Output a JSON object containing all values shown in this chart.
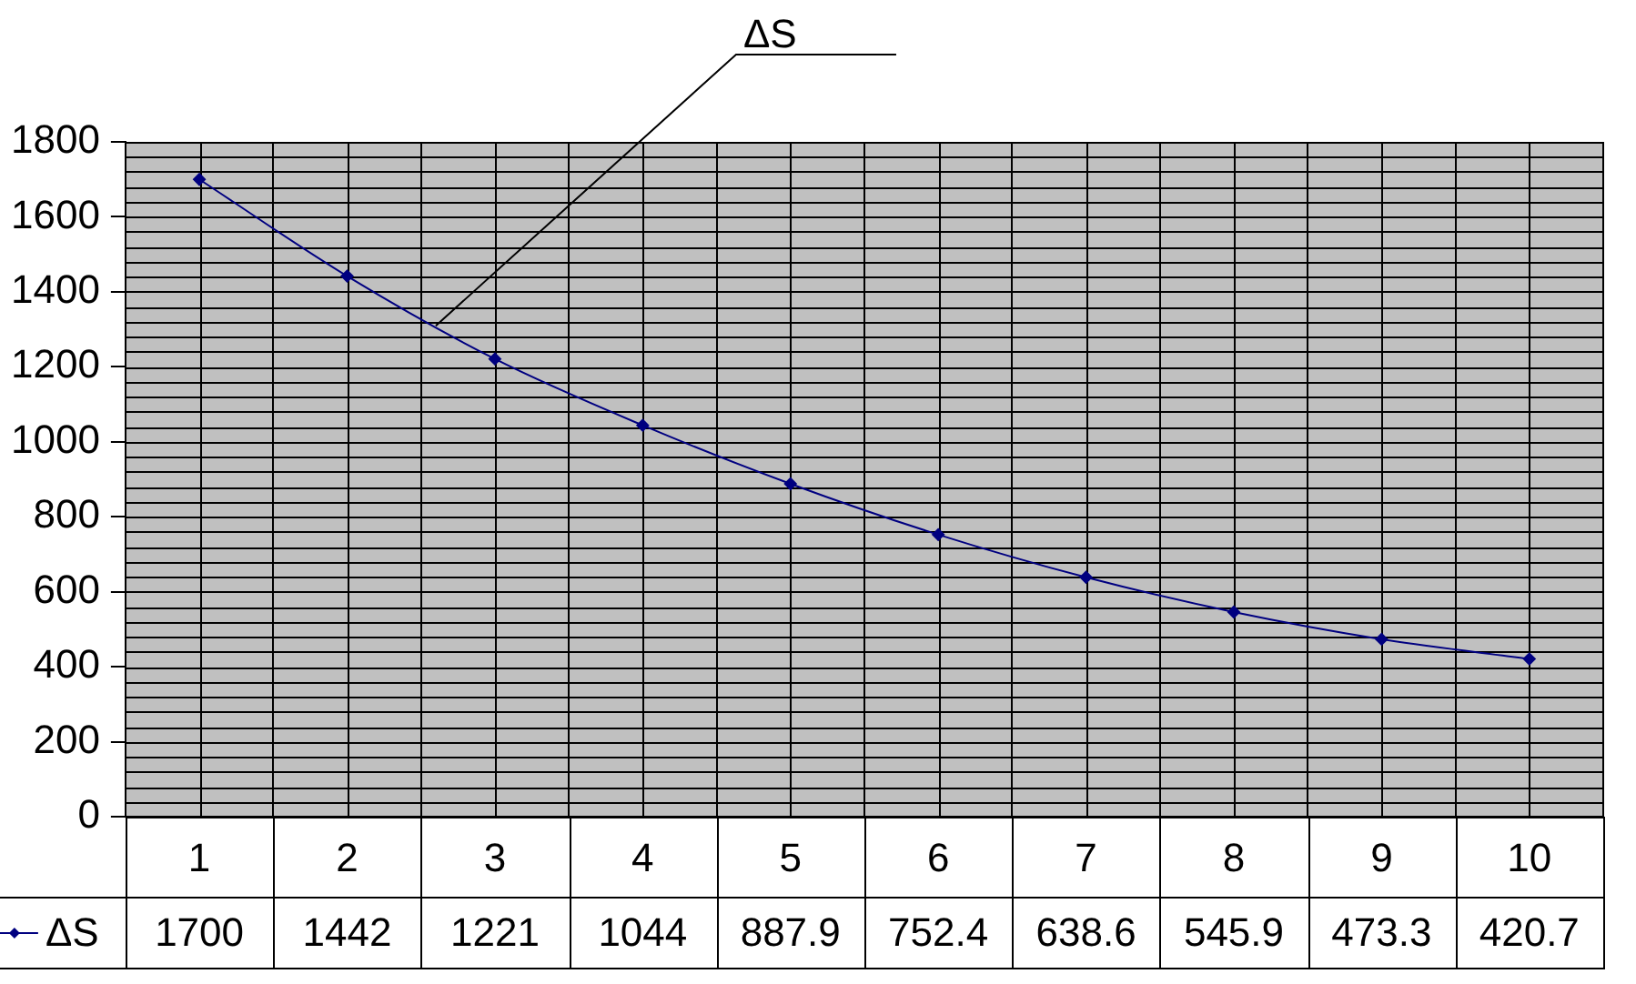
{
  "chart_data": {
    "type": "line",
    "categories": [
      "1",
      "2",
      "3",
      "4",
      "5",
      "6",
      "7",
      "8",
      "9",
      "10"
    ],
    "series": [
      {
        "name": "ΔS",
        "color": "#000080",
        "values": [
          1700,
          1442,
          1221,
          1044,
          887.9,
          752.4,
          638.6,
          545.9,
          473.3,
          420.7
        ]
      }
    ],
    "ylim": [
      0,
      1800
    ],
    "yticks": [
      0,
      200,
      400,
      600,
      800,
      1000,
      1200,
      1400,
      1600,
      1800
    ],
    "grid": true,
    "legend": "bottom",
    "data_labels": true,
    "marker": "diamond",
    "line_style": "solid",
    "annotations": [
      "ΔS"
    ]
  }
}
